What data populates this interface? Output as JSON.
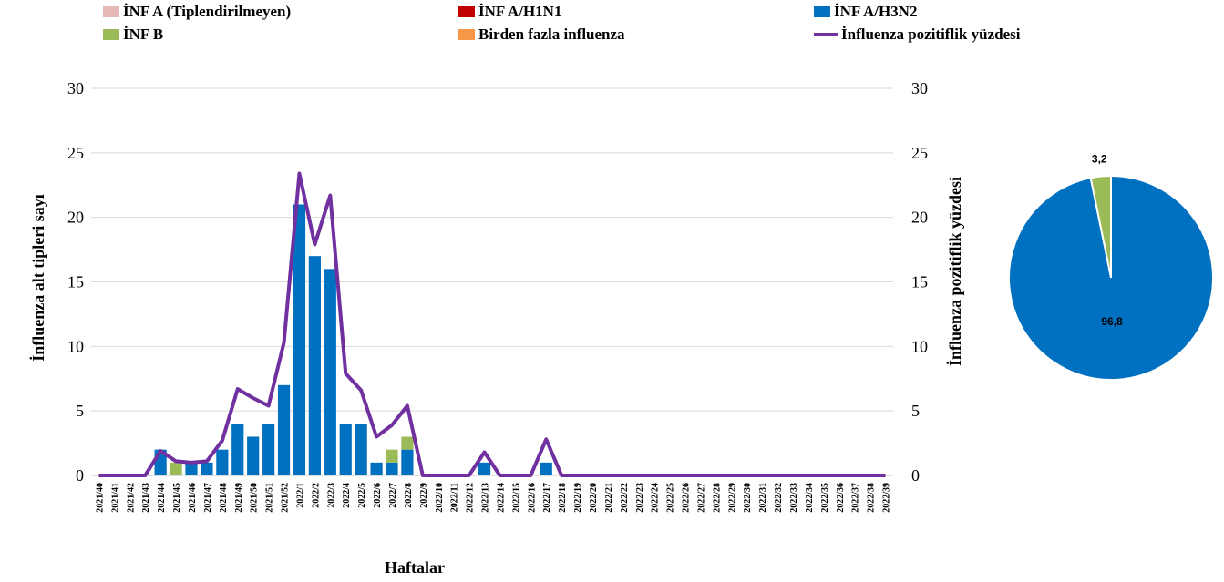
{
  "legend": [
    {
      "label": "İNF A (Tiplendirilmeyen)",
      "color": "#e6b9b8",
      "kind": "box"
    },
    {
      "label": "İNF A/H1N1",
      "color": "#c00000",
      "kind": "box"
    },
    {
      "label": "İNF A/H3N2",
      "color": "#0070c0",
      "kind": "box"
    },
    {
      "label": "İNF B",
      "color": "#9bbb59",
      "kind": "box"
    },
    {
      "label": "Birden fazla influenza",
      "color": "#f79646",
      "kind": "box"
    },
    {
      "label": "İnfluenza pozitiflik yüzdesi",
      "color": "#7030a0",
      "kind": "line"
    }
  ],
  "chart_data": [
    {
      "type": "bar",
      "stacked": true,
      "xlabel": "Haftalar",
      "ylabel": "İnfluenza alt tipleri sayı",
      "y2label": "İnfluenza pozitiflik yüzdesi",
      "ylim": [
        0,
        30
      ],
      "y2lim": [
        0,
        30
      ],
      "yticks": [
        "0",
        "5",
        "10",
        "15",
        "20",
        "25",
        "30"
      ],
      "grid": true,
      "legend_position": "top",
      "categories": [
        "2021/40",
        "2021/41",
        "2021/42",
        "2021/43",
        "2021/44",
        "2021/45",
        "2021/46",
        "2021/47",
        "2021/48",
        "2021/49",
        "2021/50",
        "2021/51",
        "2021/52",
        "2022/1",
        "2022/2",
        "2022/3",
        "2022/4",
        "2022/5",
        "2022/6",
        "2022/7",
        "2022/8",
        "2022/9",
        "2022/10",
        "2022/11",
        "2022/12",
        "2022/13",
        "2022/14",
        "2022/15",
        "2022/16",
        "2022/17",
        "2022/18",
        "2022/19",
        "2022/20",
        "2022/21",
        "2022/22",
        "2022/23",
        "2022/24",
        "2022/25",
        "2022/26",
        "2022/27",
        "2022/28",
        "2022/29",
        "2022/30",
        "2022/31",
        "2022/32",
        "2022/33",
        "2022/34",
        "2022/35",
        "2022/36",
        "2022/37",
        "2022/38",
        "2022/39"
      ],
      "series": [
        {
          "name": "İNF A/H3N2",
          "color": "#0070c0",
          "values": [
            0,
            0,
            0,
            0,
            2,
            0,
            1,
            1,
            2,
            4,
            3,
            4,
            7,
            21,
            17,
            16,
            4,
            4,
            1,
            1,
            2,
            0,
            0,
            0,
            0,
            1,
            0,
            0,
            0,
            1,
            0,
            0,
            0,
            0,
            0,
            0,
            0,
            0,
            0,
            0,
            0,
            0,
            0,
            0,
            0,
            0,
            0,
            0,
            0,
            0,
            0,
            0
          ]
        },
        {
          "name": "İNF B",
          "color": "#9bbb59",
          "values": [
            0,
            0,
            0,
            0,
            0,
            1,
            0,
            0,
            0,
            0,
            0,
            0,
            0,
            0,
            0,
            0,
            0,
            0,
            0,
            1,
            1,
            0,
            0,
            0,
            0,
            0,
            0,
            0,
            0,
            0,
            0,
            0,
            0,
            0,
            0,
            0,
            0,
            0,
            0,
            0,
            0,
            0,
            0,
            0,
            0,
            0,
            0,
            0,
            0,
            0,
            0,
            0
          ]
        },
        {
          "name": "İnfluenza pozitiflik yüzdesi",
          "color": "#7030a0",
          "type": "line",
          "axis": "right",
          "values": [
            0,
            0,
            0,
            0,
            1.9,
            1.1,
            1.0,
            1.1,
            2.7,
            6.7,
            6.0,
            5.4,
            10.3,
            23.4,
            17.9,
            21.7,
            7.9,
            6.6,
            3.0,
            3.9,
            5.4,
            0,
            0,
            0,
            0,
            1.8,
            0,
            0,
            0,
            2.8,
            0,
            0,
            0,
            0,
            0,
            0,
            0,
            0,
            0,
            0,
            0,
            0,
            0,
            0,
            0,
            0,
            0,
            0,
            0,
            0,
            0,
            0
          ]
        }
      ]
    },
    {
      "type": "pie",
      "slices": [
        {
          "name": "İNF A/H3N2",
          "value": 96.8,
          "label": "96,8",
          "color": "#0070c0"
        },
        {
          "name": "İNF B",
          "value": 3.2,
          "label": "3,2",
          "color": "#9bbb59"
        }
      ]
    }
  ]
}
